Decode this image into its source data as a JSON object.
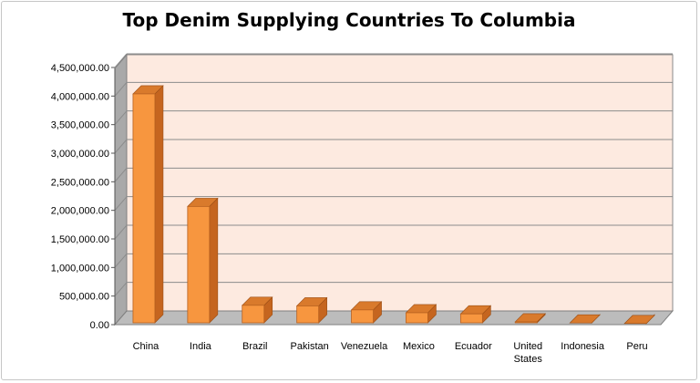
{
  "chart_data": {
    "type": "bar",
    "title": "Top Denim Supplying Countries To Columbia",
    "xlabel": "",
    "ylabel": "",
    "ylim": [
      0,
      4500000
    ],
    "yticks": [
      "0.00",
      "500,000.00",
      "1,000,000.00",
      "1,500,000.00",
      "2,000,000.00",
      "2,500,000.00",
      "3,000,000.00",
      "3,500,000.00",
      "4,000,000.00",
      "4,500,000.00"
    ],
    "categories": [
      [
        "China"
      ],
      [
        "India"
      ],
      [
        "Brazil"
      ],
      [
        "Pakistan"
      ],
      [
        "Venezuela"
      ],
      [
        "Mexico"
      ],
      [
        "Ecuador"
      ],
      [
        "United",
        "States"
      ],
      [
        "Indonesia"
      ],
      [
        "Peru"
      ]
    ],
    "values": [
      4150000,
      2180000,
      450000,
      440000,
      370000,
      320000,
      300000,
      160000,
      140000,
      130000
    ],
    "bar_color": "#f7963f",
    "bar_side_color": "#c5651f",
    "bar_top_color": "#d97a2c",
    "plot_background": "#fdeae0",
    "wall_side_color": "#a9a9a9",
    "floor_color": "#bcbcbc",
    "grid": true,
    "legend": "none",
    "style": "3d-column"
  }
}
